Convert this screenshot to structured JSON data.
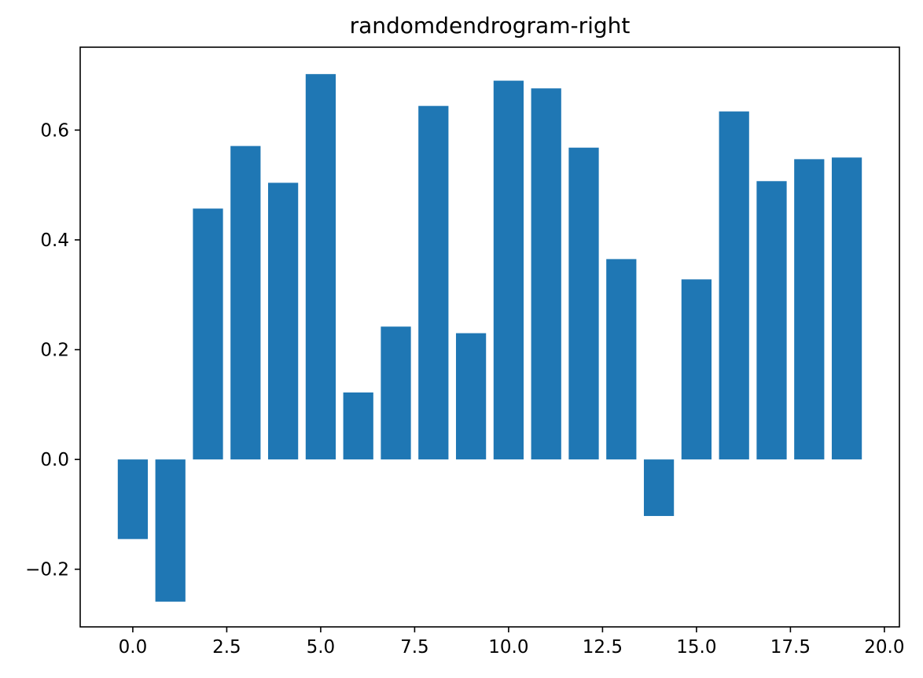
{
  "chart_data": {
    "type": "bar",
    "title": "randomdendrogram-right",
    "xlabel": "",
    "ylabel": "",
    "x": [
      0,
      1,
      2,
      3,
      4,
      5,
      6,
      7,
      8,
      9,
      10,
      11,
      12,
      13,
      14,
      15,
      16,
      17,
      18,
      19
    ],
    "values": [
      -0.145,
      -0.259,
      0.457,
      0.571,
      0.504,
      0.702,
      0.122,
      0.242,
      0.644,
      0.23,
      0.69,
      0.676,
      0.568,
      0.365,
      -0.103,
      0.328,
      0.634,
      0.507,
      0.547,
      0.55
    ],
    "xlim": [
      -1.4,
      20.4
    ],
    "ylim": [
      -0.305,
      0.751
    ],
    "xticks": [
      0.0,
      2.5,
      5.0,
      7.5,
      10.0,
      12.5,
      15.0,
      17.5,
      20.0
    ],
    "xtick_labels": [
      "0.0",
      "2.5",
      "5.0",
      "7.5",
      "10.0",
      "12.5",
      "15.0",
      "17.5",
      "20.0"
    ],
    "yticks": [
      -0.2,
      0.0,
      0.2,
      0.4,
      0.6
    ],
    "ytick_labels": [
      "−0.2",
      "0.0",
      "0.2",
      "0.4",
      "0.6"
    ],
    "bar_width": 0.8,
    "grid": false,
    "colors": {
      "bar": "#1f77b4"
    }
  }
}
